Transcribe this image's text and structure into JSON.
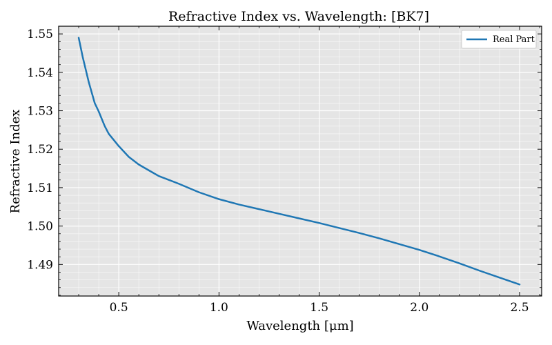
{
  "chart_data": {
    "type": "line",
    "title": "Refractive Index vs. Wavelength: [BK7]",
    "xlabel": "Wavelength [μm]",
    "ylabel": "Refractive Index",
    "xlim": [
      0.2,
      2.61
    ],
    "ylim": [
      1.4818,
      1.552
    ],
    "x_ticks": [
      0.5,
      1.0,
      1.5,
      2.0,
      2.5
    ],
    "x_tick_labels": [
      "0.5",
      "1.0",
      "1.5",
      "2.0",
      "2.5"
    ],
    "y_ticks": [
      1.49,
      1.5,
      1.51,
      1.52,
      1.53,
      1.54,
      1.55
    ],
    "y_tick_labels": [
      "1.49",
      "1.50",
      "1.51",
      "1.52",
      "1.53",
      "1.54",
      "1.55"
    ],
    "grid": true,
    "legend_position": "top-right",
    "colors": {
      "plot_background": "#e5e5e5",
      "grid": "#ffffff",
      "series": "#1f77b4"
    },
    "series": [
      {
        "name": "Real Part",
        "x": [
          0.3,
          0.32,
          0.35,
          0.38,
          0.4,
          0.43,
          0.45,
          0.5,
          0.55,
          0.6,
          0.65,
          0.7,
          0.8,
          0.9,
          1.0,
          1.1,
          1.2,
          1.3,
          1.4,
          1.5,
          1.6,
          1.7,
          1.8,
          1.9,
          2.0,
          2.1,
          2.2,
          2.3,
          2.4,
          2.5
        ],
        "y": [
          1.549,
          1.544,
          1.5375,
          1.532,
          1.5298,
          1.526,
          1.524,
          1.5208,
          1.518,
          1.516,
          1.5145,
          1.513,
          1.511,
          1.5088,
          1.507,
          1.5056,
          1.5044,
          1.5032,
          1.502,
          1.5008,
          1.4995,
          1.4982,
          1.4968,
          1.4953,
          1.4938,
          1.4921,
          1.4903,
          1.4884,
          1.4866,
          1.4848
        ]
      }
    ]
  }
}
